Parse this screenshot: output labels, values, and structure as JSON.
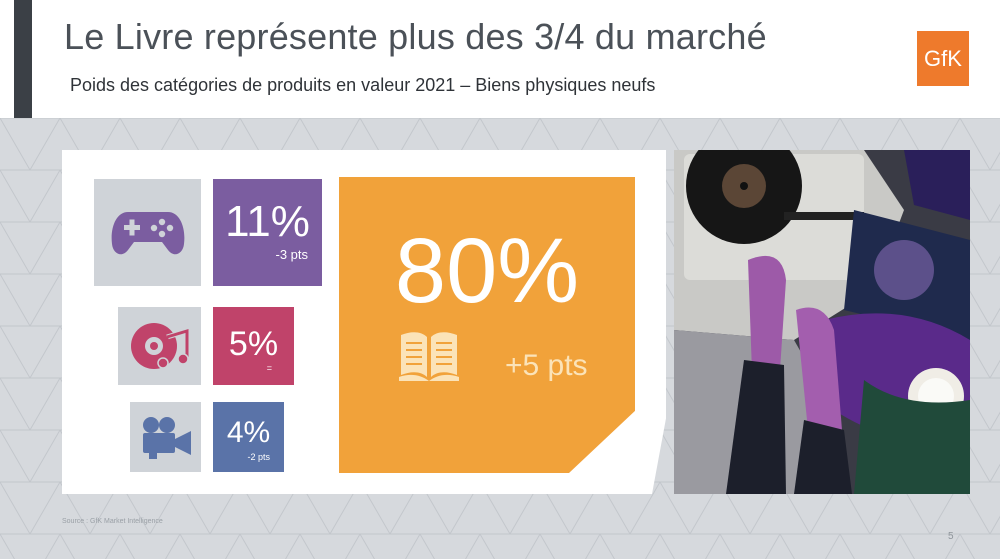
{
  "header": {
    "title": "Le Livre représente plus des 3/4 du marché",
    "subtitle": "Poids des catégories de produits en valeur 2021 – Biens physiques neufs",
    "logo_text": "GfK"
  },
  "categories": {
    "games": {
      "icon": "gamepad-icon",
      "value": "11%",
      "change": "-3 pts",
      "color": "#7b5da0"
    },
    "music": {
      "icon": "music-disc-icon",
      "value": "5%",
      "change": "=",
      "color": "#c0436a"
    },
    "video": {
      "icon": "video-camera-icon",
      "value": "4%",
      "change": "-2 pts",
      "color": "#5a73a8"
    },
    "books": {
      "icon": "open-book-icon",
      "value": "80%",
      "change": "+5 pts",
      "color": "#f1a23a"
    }
  },
  "footer": {
    "source": "Source : GfK Market Intelligence",
    "page_number": "5"
  }
}
